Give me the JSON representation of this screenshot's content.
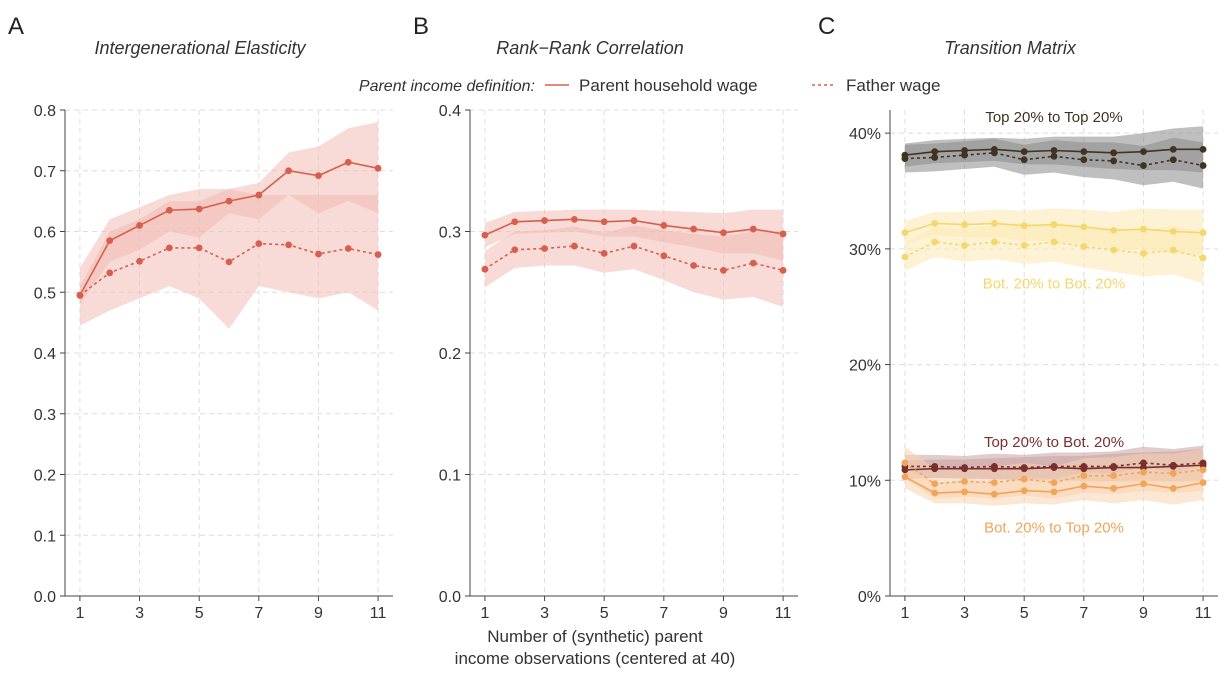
{
  "legend": {
    "title": "Parent income definition:",
    "solid_label": "Parent household wage",
    "dashed_label": "Father wage"
  },
  "xlabel_line1": "Number of (synthetic) parent",
  "xlabel_line2": "income observations (centered at 40)",
  "colors": {
    "red": "#d6604d",
    "red_band": "#f2b8b0",
    "dark": "#3f3323",
    "dark_band": "#8a8a8a",
    "yellow": "#f5d76e",
    "yellow_band": "#fbeab0",
    "maroon": "#7a2f2f",
    "maroon_band": "#c9a0a0",
    "orange": "#f0a55a",
    "orange_band": "#f9d3b0",
    "grid": "#dedede",
    "axis": "#444444"
  },
  "chart_data": [
    {
      "panel": "A",
      "type": "line",
      "title": "Intergenerational Elasticity",
      "xlabel": "",
      "ylabel": "",
      "ylim": [
        0,
        0.8
      ],
      "xlim": [
        0.5,
        11.5
      ],
      "x_ticks": [
        1,
        3,
        5,
        7,
        9,
        11
      ],
      "y_ticks": [
        0,
        0.1,
        0.2,
        0.3,
        0.4,
        0.5,
        0.6,
        0.7,
        0.8
      ],
      "y_tick_labels": [
        "0.0",
        "0.1",
        "0.2",
        "0.3",
        "0.4",
        "0.5",
        "0.6",
        "0.7",
        "0.8"
      ],
      "x": [
        1,
        2,
        3,
        4,
        5,
        6,
        7,
        8,
        9,
        10,
        11
      ],
      "series": [
        {
          "name": "Parent household wage",
          "style": "solid",
          "color_key": "red",
          "values": [
            0.495,
            0.585,
            0.61,
            0.635,
            0.637,
            0.65,
            0.66,
            0.7,
            0.692,
            0.714,
            0.704
          ],
          "lower": [
            0.48,
            0.55,
            0.57,
            0.6,
            0.59,
            0.63,
            0.62,
            0.66,
            0.63,
            0.65,
            0.63
          ],
          "upper": [
            0.51,
            0.6,
            0.62,
            0.65,
            0.65,
            0.67,
            0.68,
            0.73,
            0.74,
            0.77,
            0.78
          ]
        },
        {
          "name": "Father wage",
          "style": "dashed",
          "color_key": "red",
          "values": [
            0.495,
            0.532,
            0.551,
            0.573,
            0.573,
            0.55,
            0.58,
            0.578,
            0.563,
            0.572,
            0.562
          ],
          "lower": [
            0.445,
            0.47,
            0.49,
            0.51,
            0.49,
            0.44,
            0.51,
            0.5,
            0.49,
            0.5,
            0.47
          ],
          "upper": [
            0.54,
            0.62,
            0.64,
            0.66,
            0.67,
            0.67,
            0.66,
            0.66,
            0.66,
            0.66,
            0.66
          ]
        }
      ]
    },
    {
      "panel": "B",
      "type": "line",
      "title": "Rank−Rank Correlation",
      "xlabel": "Number of (synthetic) parent income observations (centered at 40)",
      "ylabel": "",
      "ylim": [
        0,
        0.4
      ],
      "xlim": [
        0.5,
        11.5
      ],
      "x_ticks": [
        1,
        3,
        5,
        7,
        9,
        11
      ],
      "y_ticks": [
        0,
        0.1,
        0.2,
        0.3,
        0.4
      ],
      "y_tick_labels": [
        "0.0",
        "0.1",
        "0.2",
        "0.3",
        "0.4"
      ],
      "x": [
        1,
        2,
        3,
        4,
        5,
        6,
        7,
        8,
        9,
        10,
        11
      ],
      "series": [
        {
          "name": "Parent household wage",
          "style": "solid",
          "color_key": "red",
          "values": [
            0.297,
            0.308,
            0.309,
            0.31,
            0.308,
            0.309,
            0.305,
            0.302,
            0.299,
            0.302,
            0.298
          ],
          "lower": [
            0.287,
            0.298,
            0.299,
            0.3,
            0.296,
            0.296,
            0.291,
            0.287,
            0.282,
            0.282,
            0.276
          ],
          "upper": [
            0.307,
            0.316,
            0.317,
            0.318,
            0.318,
            0.318,
            0.317,
            0.316,
            0.315,
            0.318,
            0.318
          ]
        },
        {
          "name": "Father wage",
          "style": "dashed",
          "color_key": "red",
          "values": [
            0.269,
            0.285,
            0.286,
            0.288,
            0.282,
            0.288,
            0.28,
            0.272,
            0.268,
            0.274,
            0.268
          ],
          "lower": [
            0.254,
            0.27,
            0.272,
            0.272,
            0.266,
            0.269,
            0.26,
            0.25,
            0.244,
            0.246,
            0.238
          ],
          "upper": [
            0.284,
            0.3,
            0.301,
            0.304,
            0.299,
            0.305,
            0.301,
            0.298,
            0.296,
            0.3,
            0.3
          ]
        }
      ]
    },
    {
      "panel": "C",
      "type": "line",
      "title": "Transition Matrix",
      "xlabel": "",
      "ylabel": "",
      "ylim": [
        0,
        0.42
      ],
      "xlim": [
        0.5,
        11.5
      ],
      "x_ticks": [
        1,
        3,
        5,
        7,
        9,
        11
      ],
      "y_ticks": [
        0,
        0.1,
        0.2,
        0.3,
        0.4
      ],
      "y_tick_labels": [
        "0%",
        "10%",
        "20%",
        "30%",
        "40%"
      ],
      "x": [
        1,
        2,
        3,
        4,
        5,
        6,
        7,
        8,
        9,
        10,
        11
      ],
      "series": [
        {
          "name": "Top 20% to Top 20%",
          "style": "solid",
          "color_key": "dark",
          "values": [
            0.381,
            0.384,
            0.385,
            0.386,
            0.384,
            0.385,
            0.384,
            0.383,
            0.384,
            0.386,
            0.386
          ],
          "lower": [
            0.371,
            0.374,
            0.375,
            0.376,
            0.373,
            0.373,
            0.371,
            0.369,
            0.368,
            0.368,
            0.366
          ],
          "upper": [
            0.391,
            0.394,
            0.395,
            0.396,
            0.395,
            0.397,
            0.397,
            0.397,
            0.4,
            0.404,
            0.406
          ]
        },
        {
          "name": "Top 20% to Top 20%",
          "style": "dashed",
          "color_key": "dark",
          "values": [
            0.378,
            0.379,
            0.381,
            0.383,
            0.377,
            0.38,
            0.377,
            0.376,
            0.372,
            0.377,
            0.372
          ],
          "lower": [
            0.366,
            0.367,
            0.369,
            0.371,
            0.364,
            0.366,
            0.362,
            0.36,
            0.355,
            0.358,
            0.352
          ],
          "upper": [
            0.39,
            0.391,
            0.393,
            0.395,
            0.39,
            0.394,
            0.392,
            0.392,
            0.389,
            0.396,
            0.392
          ]
        },
        {
          "name": "Bot. 20% to Bot. 20%",
          "style": "solid",
          "color_key": "yellow",
          "values": [
            0.314,
            0.322,
            0.321,
            0.322,
            0.32,
            0.321,
            0.319,
            0.316,
            0.317,
            0.315,
            0.314
          ],
          "lower": [
            0.304,
            0.312,
            0.31,
            0.31,
            0.307,
            0.307,
            0.304,
            0.3,
            0.299,
            0.296,
            0.294
          ],
          "upper": [
            0.324,
            0.332,
            0.332,
            0.334,
            0.333,
            0.335,
            0.334,
            0.332,
            0.335,
            0.334,
            0.334
          ]
        },
        {
          "name": "Bot. 20% to Bot. 20%",
          "style": "dashed",
          "color_key": "yellow",
          "values": [
            0.293,
            0.306,
            0.303,
            0.306,
            0.303,
            0.306,
            0.302,
            0.299,
            0.296,
            0.299,
            0.292
          ],
          "lower": [
            0.281,
            0.293,
            0.289,
            0.291,
            0.287,
            0.289,
            0.284,
            0.28,
            0.276,
            0.278,
            0.27
          ],
          "upper": [
            0.305,
            0.319,
            0.317,
            0.321,
            0.319,
            0.323,
            0.32,
            0.318,
            0.316,
            0.32,
            0.314
          ]
        },
        {
          "name": "Top 20% to Bot. 20%",
          "style": "solid",
          "color_key": "maroon",
          "values": [
            0.109,
            0.11,
            0.11,
            0.11,
            0.11,
            0.111,
            0.11,
            0.111,
            0.111,
            0.112,
            0.113
          ],
          "lower": [
            0.101,
            0.102,
            0.102,
            0.101,
            0.1,
            0.101,
            0.099,
            0.099,
            0.099,
            0.099,
            0.099
          ],
          "upper": [
            0.117,
            0.118,
            0.118,
            0.119,
            0.12,
            0.121,
            0.121,
            0.123,
            0.124,
            0.125,
            0.127
          ]
        },
        {
          "name": "Top 20% to Bot. 20%",
          "style": "dashed",
          "color_key": "maroon",
          "values": [
            0.112,
            0.112,
            0.111,
            0.112,
            0.111,
            0.112,
            0.112,
            0.112,
            0.115,
            0.113,
            0.115
          ],
          "lower": [
            0.102,
            0.102,
            0.101,
            0.101,
            0.1,
            0.1,
            0.1,
            0.099,
            0.101,
            0.099,
            0.1
          ],
          "upper": [
            0.122,
            0.122,
            0.121,
            0.123,
            0.122,
            0.124,
            0.124,
            0.125,
            0.129,
            0.127,
            0.13
          ]
        },
        {
          "name": "Bot. 20% to Top 20%",
          "style": "solid",
          "color_key": "orange",
          "values": [
            0.103,
            0.089,
            0.09,
            0.088,
            0.091,
            0.09,
            0.095,
            0.093,
            0.097,
            0.093,
            0.098
          ],
          "lower": [
            0.093,
            0.08,
            0.08,
            0.078,
            0.08,
            0.079,
            0.083,
            0.08,
            0.083,
            0.079,
            0.083
          ],
          "upper": [
            0.113,
            0.098,
            0.1,
            0.098,
            0.102,
            0.101,
            0.107,
            0.106,
            0.111,
            0.107,
            0.113
          ]
        },
        {
          "name": "Bot. 20% to Top 20%",
          "style": "dashed",
          "color_key": "orange",
          "values": [
            0.115,
            0.097,
            0.099,
            0.098,
            0.101,
            0.098,
            0.104,
            0.104,
            0.107,
            0.106,
            0.109
          ],
          "lower": [
            0.101,
            0.084,
            0.086,
            0.084,
            0.087,
            0.084,
            0.089,
            0.088,
            0.091,
            0.089,
            0.091
          ],
          "upper": [
            0.129,
            0.11,
            0.112,
            0.112,
            0.115,
            0.112,
            0.119,
            0.12,
            0.123,
            0.123,
            0.127
          ]
        }
      ],
      "annotations": [
        {
          "text": "Top 20% to Top 20%",
          "x": 6,
          "y": 0.414,
          "color_key": "dark"
        },
        {
          "text": "Bot. 20% to Bot. 20%",
          "x": 6,
          "y": 0.27,
          "color_key": "yellow"
        },
        {
          "text": "Top 20% to Bot. 20%",
          "x": 6,
          "y": 0.133,
          "color_key": "maroon"
        },
        {
          "text": "Bot. 20% to Top 20%",
          "x": 6,
          "y": 0.059,
          "color_key": "orange"
        }
      ]
    }
  ]
}
